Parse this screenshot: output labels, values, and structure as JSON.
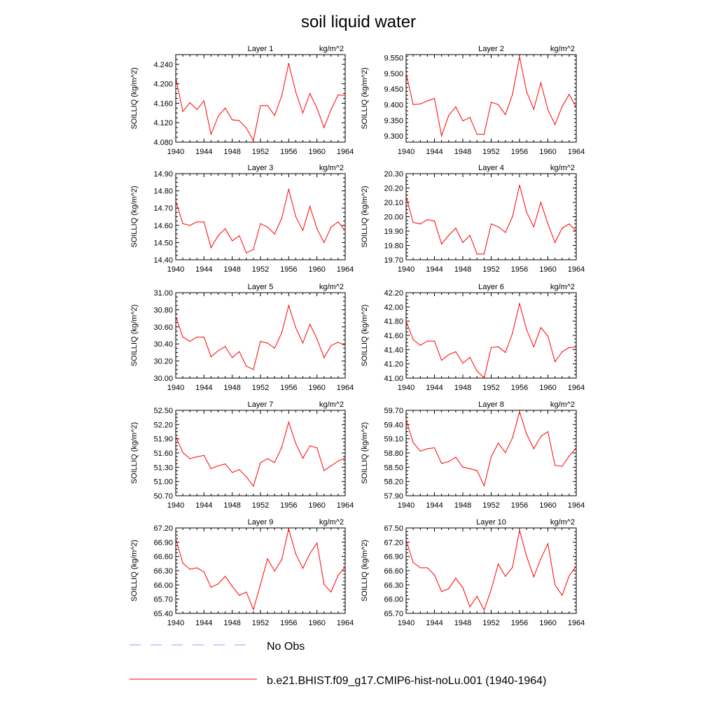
{
  "figure": {
    "title": "soil liquid water",
    "ylabel": "SOILLIQ  (kg/m^2)",
    "units": "kg/m^2",
    "legend": [
      {
        "label": "No Obs",
        "color": "#9a9aff",
        "style": "dashed"
      },
      {
        "label": "b.e21.BHIST.f09_g17.CMIP6-hist-noLu.001 (1940-1964)",
        "color": "#ff0000",
        "style": "solid"
      }
    ]
  },
  "chart_data": [
    {
      "type": "line",
      "title": "Layer 1",
      "units": "kg/m^2",
      "ylabel": "SOILLIQ  (kg/m^2)",
      "xlim": [
        1940,
        1964
      ],
      "xticks": [
        1940,
        1944,
        1948,
        1952,
        1956,
        1960,
        1964
      ],
      "ylim": [
        4.08,
        4.26
      ],
      "yticks": [
        "4.080",
        "4.120",
        "4.160",
        "4.200",
        "4.240"
      ],
      "x": [
        1940,
        1941,
        1942,
        1943,
        1944,
        1945,
        1946,
        1947,
        1948,
        1949,
        1950,
        1951,
        1952,
        1953,
        1954,
        1955,
        1956,
        1957,
        1958,
        1959,
        1960,
        1961,
        1962,
        1963,
        1964
      ],
      "y": [
        4.212,
        4.143,
        4.161,
        4.147,
        4.165,
        4.096,
        4.133,
        4.15,
        4.126,
        4.124,
        4.109,
        4.083,
        4.155,
        4.155,
        4.135,
        4.175,
        4.242,
        4.183,
        4.14,
        4.18,
        4.15,
        4.11,
        4.147,
        4.177,
        4.176
      ]
    },
    {
      "type": "line",
      "title": "Layer 2",
      "units": "kg/m^2",
      "ylabel": "SOILLIQ  (kg/m^2)",
      "xlim": [
        1940,
        1964
      ],
      "xticks": [
        1940,
        1944,
        1948,
        1952,
        1956,
        1960,
        1964
      ],
      "ylim": [
        9.28,
        9.56
      ],
      "yticks": [
        "9.300",
        "9.350",
        "9.400",
        "9.450",
        "9.500",
        "9.550"
      ],
      "x": [
        1940,
        1941,
        1942,
        1943,
        1944,
        1945,
        1946,
        1947,
        1948,
        1949,
        1950,
        1951,
        1952,
        1953,
        1954,
        1955,
        1956,
        1957,
        1958,
        1959,
        1960,
        1961,
        1962,
        1963,
        1964
      ],
      "y": [
        9.5,
        9.4,
        9.402,
        9.412,
        9.42,
        9.3,
        9.365,
        9.393,
        9.348,
        9.359,
        9.305,
        9.305,
        9.408,
        9.4,
        9.368,
        9.433,
        9.553,
        9.441,
        9.385,
        9.47,
        9.384,
        9.336,
        9.394,
        9.433,
        9.39
      ]
    },
    {
      "type": "line",
      "title": "Layer 3",
      "units": "kg/m^2",
      "ylabel": "SOILLIQ  (kg/m^2)",
      "xlim": [
        1940,
        1964
      ],
      "xticks": [
        1940,
        1944,
        1948,
        1952,
        1956,
        1960,
        1964
      ],
      "ylim": [
        14.4,
        14.9
      ],
      "yticks": [
        "14.40",
        "14.50",
        "14.60",
        "14.70",
        "14.80",
        "14.90"
      ],
      "x": [
        1940,
        1941,
        1942,
        1943,
        1944,
        1945,
        1946,
        1947,
        1948,
        1949,
        1950,
        1951,
        1952,
        1953,
        1954,
        1955,
        1956,
        1957,
        1958,
        1959,
        1960,
        1961,
        1962,
        1963,
        1964
      ],
      "y": [
        14.74,
        14.61,
        14.6,
        14.62,
        14.62,
        14.47,
        14.54,
        14.58,
        14.51,
        14.54,
        14.44,
        14.46,
        14.61,
        14.59,
        14.55,
        14.64,
        14.81,
        14.65,
        14.57,
        14.71,
        14.58,
        14.5,
        14.59,
        14.62,
        14.57
      ]
    },
    {
      "type": "line",
      "title": "Layer 4",
      "units": "kg/m^2",
      "ylabel": "SOILLIQ  (kg/m^2)",
      "xlim": [
        1940,
        1964
      ],
      "xticks": [
        1940,
        1944,
        1948,
        1952,
        1956,
        1960,
        1964
      ],
      "ylim": [
        19.7,
        20.3
      ],
      "yticks": [
        "19.70",
        "19.80",
        "19.90",
        "20.00",
        "20.10",
        "20.20",
        "20.30"
      ],
      "x": [
        1940,
        1941,
        1942,
        1943,
        1944,
        1945,
        1946,
        1947,
        1948,
        1949,
        1950,
        1951,
        1952,
        1953,
        1954,
        1955,
        1956,
        1957,
        1958,
        1959,
        1960,
        1961,
        1962,
        1963,
        1964
      ],
      "y": [
        20.14,
        19.96,
        19.95,
        19.98,
        19.97,
        19.81,
        19.87,
        19.92,
        19.82,
        19.87,
        19.74,
        19.74,
        19.95,
        19.93,
        19.89,
        20.0,
        20.22,
        20.03,
        19.93,
        20.1,
        19.95,
        19.82,
        19.92,
        19.95,
        19.9
      ]
    },
    {
      "type": "line",
      "title": "Layer 5",
      "units": "kg/m^2",
      "ylabel": "SOILLIQ  (kg/m^2)",
      "xlim": [
        1940,
        1964
      ],
      "xticks": [
        1940,
        1944,
        1948,
        1952,
        1956,
        1960,
        1964
      ],
      "ylim": [
        30.0,
        31.0
      ],
      "yticks": [
        "30.00",
        "30.20",
        "30.40",
        "30.60",
        "30.80",
        "31.00"
      ],
      "x": [
        1940,
        1941,
        1942,
        1943,
        1944,
        1945,
        1946,
        1947,
        1948,
        1949,
        1950,
        1951,
        1952,
        1953,
        1954,
        1955,
        1956,
        1957,
        1958,
        1959,
        1960,
        1961,
        1962,
        1963,
        1964
      ],
      "y": [
        30.72,
        30.48,
        30.43,
        30.48,
        30.48,
        30.25,
        30.32,
        30.37,
        30.24,
        30.31,
        30.14,
        30.1,
        30.43,
        30.41,
        30.35,
        30.53,
        30.85,
        30.59,
        30.41,
        30.63,
        30.46,
        30.24,
        30.38,
        30.42,
        30.38
      ]
    },
    {
      "type": "line",
      "title": "Layer 6",
      "units": "kg/m^2",
      "ylabel": "SOILLIQ  (kg/m^2)",
      "xlim": [
        1940,
        1964
      ],
      "xticks": [
        1940,
        1944,
        1948,
        1952,
        1956,
        1960,
        1964
      ],
      "ylim": [
        41.0,
        42.2
      ],
      "yticks": [
        "41.00",
        "41.20",
        "41.40",
        "41.60",
        "41.80",
        "42.00",
        "42.20"
      ],
      "x": [
        1940,
        1941,
        1942,
        1943,
        1944,
        1945,
        1946,
        1947,
        1948,
        1949,
        1950,
        1951,
        1952,
        1953,
        1954,
        1955,
        1956,
        1957,
        1958,
        1959,
        1960,
        1961,
        1962,
        1963,
        1964
      ],
      "y": [
        41.8,
        41.54,
        41.46,
        41.52,
        41.52,
        41.25,
        41.33,
        41.37,
        41.21,
        41.29,
        41.1,
        41.0,
        41.43,
        41.44,
        41.36,
        41.63,
        42.05,
        41.68,
        41.44,
        41.71,
        41.59,
        41.23,
        41.37,
        41.43,
        41.43
      ]
    },
    {
      "type": "line",
      "title": "Layer 7",
      "units": "kg/m^2",
      "ylabel": "SOILLIQ  (kg/m^2)",
      "xlim": [
        1940,
        1964
      ],
      "xticks": [
        1940,
        1944,
        1948,
        1952,
        1956,
        1960,
        1964
      ],
      "ylim": [
        50.7,
        52.5
      ],
      "yticks": [
        "50.70",
        "51.00",
        "51.30",
        "51.60",
        "51.90",
        "52.20",
        "52.50"
      ],
      "x": [
        1940,
        1941,
        1942,
        1943,
        1944,
        1945,
        1946,
        1947,
        1948,
        1949,
        1950,
        1951,
        1952,
        1953,
        1954,
        1955,
        1956,
        1957,
        1958,
        1959,
        1960,
        1961,
        1962,
        1963,
        1964
      ],
      "y": [
        51.95,
        51.61,
        51.48,
        51.52,
        51.55,
        51.27,
        51.33,
        51.37,
        51.19,
        51.25,
        51.1,
        50.9,
        51.4,
        51.48,
        51.4,
        51.72,
        52.25,
        51.8,
        51.49,
        51.75,
        51.71,
        51.23,
        51.33,
        51.43,
        51.5
      ]
    },
    {
      "type": "line",
      "title": "Layer 8",
      "units": "kg/m^2",
      "ylabel": "SOILLIQ  (kg/m^2)",
      "xlim": [
        1940,
        1964
      ],
      "xticks": [
        1940,
        1944,
        1948,
        1952,
        1956,
        1960,
        1964
      ],
      "ylim": [
        57.9,
        59.7
      ],
      "yticks": [
        "57.90",
        "58.20",
        "58.50",
        "58.80",
        "59.10",
        "59.40",
        "59.70"
      ],
      "x": [
        1940,
        1941,
        1942,
        1943,
        1944,
        1945,
        1946,
        1947,
        1948,
        1949,
        1950,
        1951,
        1952,
        1953,
        1954,
        1955,
        1956,
        1957,
        1958,
        1959,
        1960,
        1961,
        1962,
        1963,
        1964
      ],
      "y": [
        59.5,
        59.02,
        58.84,
        58.89,
        58.91,
        58.58,
        58.62,
        58.71,
        58.5,
        58.47,
        58.43,
        58.11,
        58.72,
        59.01,
        58.81,
        59.12,
        59.67,
        59.2,
        58.89,
        59.15,
        59.25,
        58.54,
        58.52,
        58.74,
        58.91
      ]
    },
    {
      "type": "line",
      "title": "Layer 9",
      "units": "kg/m^2",
      "ylabel": "SOILLIQ  (kg/m^2)",
      "xlim": [
        1940,
        1964
      ],
      "xticks": [
        1940,
        1944,
        1948,
        1952,
        1956,
        1960,
        1964
      ],
      "ylim": [
        65.4,
        67.2
      ],
      "yticks": [
        "65.40",
        "65.70",
        "66.00",
        "66.30",
        "66.60",
        "66.90",
        "67.20"
      ],
      "x": [
        1940,
        1941,
        1942,
        1943,
        1944,
        1945,
        1946,
        1947,
        1948,
        1949,
        1950,
        1951,
        1952,
        1953,
        1954,
        1955,
        1956,
        1957,
        1958,
        1959,
        1960,
        1961,
        1962,
        1963,
        1964
      ],
      "y": [
        66.98,
        66.46,
        66.33,
        66.36,
        66.27,
        65.95,
        66.02,
        66.18,
        65.97,
        65.78,
        65.85,
        65.48,
        66.01,
        66.55,
        66.29,
        66.53,
        67.18,
        66.65,
        66.35,
        66.66,
        66.88,
        66.01,
        65.85,
        66.2,
        66.38
      ]
    },
    {
      "type": "line",
      "title": "Layer 10",
      "units": "kg/m^2",
      "ylabel": "SOILLIQ  (kg/m^2)",
      "xlim": [
        1940,
        1964
      ],
      "xticks": [
        1940,
        1944,
        1948,
        1952,
        1956,
        1960,
        1964
      ],
      "ylim": [
        65.7,
        67.5
      ],
      "yticks": [
        "65.70",
        "66.00",
        "66.30",
        "66.60",
        "66.90",
        "67.20",
        "67.50"
      ],
      "x": [
        1940,
        1941,
        1942,
        1943,
        1944,
        1945,
        1946,
        1947,
        1948,
        1949,
        1950,
        1951,
        1952,
        1953,
        1954,
        1955,
        1956,
        1957,
        1958,
        1959,
        1960,
        1961,
        1962,
        1963,
        1964
      ],
      "y": [
        67.25,
        66.77,
        66.66,
        66.66,
        66.51,
        66.16,
        66.22,
        66.44,
        66.24,
        65.84,
        66.06,
        65.77,
        66.2,
        66.74,
        66.48,
        66.67,
        67.45,
        66.9,
        66.47,
        66.85,
        67.17,
        66.3,
        66.08,
        66.49,
        66.7
      ]
    }
  ]
}
